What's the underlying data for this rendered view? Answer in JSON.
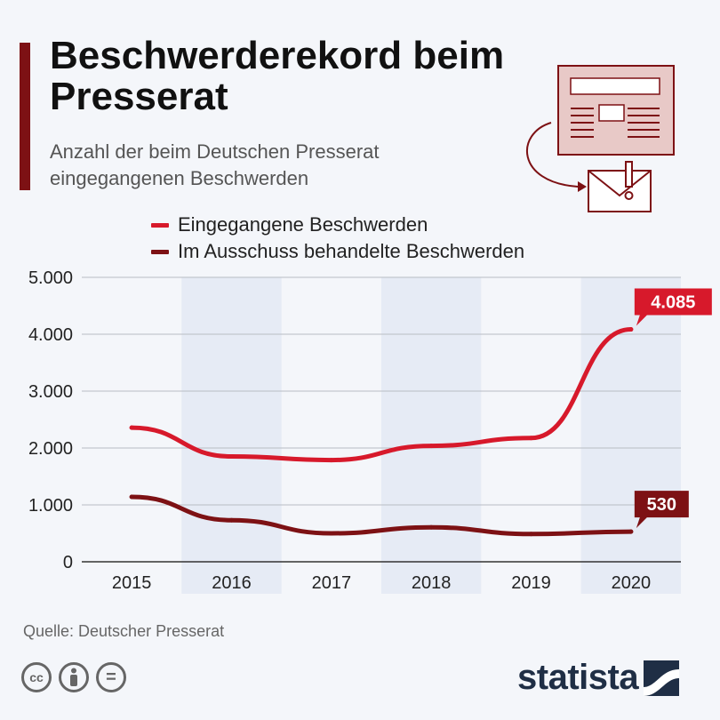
{
  "header": {
    "title": "Beschwerderekord beim Presserat",
    "subtitle": "Anzahl der beim Deutschen Presserat eingegangenen Beschwerden"
  },
  "legend": [
    {
      "label": "Eingegangene Beschwerden",
      "color": "#d7192b"
    },
    {
      "label": "Im Ausschuss behandelte Beschwerden",
      "color": "#7d1114"
    }
  ],
  "chart_data": {
    "type": "line",
    "x": [
      "2015",
      "2016",
      "2017",
      "2018",
      "2019",
      "2020"
    ],
    "ylim": [
      0,
      5000
    ],
    "yticks": [
      0,
      1000,
      2000,
      3000,
      4000,
      5000
    ],
    "ytick_labels": [
      "0",
      "1.000",
      "2.000",
      "3.000",
      "4.000",
      "5.000"
    ],
    "grid": true,
    "legend_position": "top",
    "series": [
      {
        "name": "Eingegangene Beschwerden",
        "color": "#d7192b",
        "values": [
          2358,
          1851,
          1788,
          2038,
          2175,
          4085
        ],
        "end_label": "4.085"
      },
      {
        "name": "Im Ausschuss behandelte Beschwerden",
        "color": "#7d1114",
        "values": [
          1141,
          731,
          500,
          605,
          488,
          530
        ],
        "end_label": "530"
      }
    ]
  },
  "footer": {
    "source": "Quelle: Deutscher Presserat",
    "brand": "statista",
    "license_icons": [
      "cc-icon",
      "by-icon",
      "nd-icon"
    ],
    "cc_text": "cc",
    "nd_text": "="
  },
  "colors": {
    "accent": "#7d1114",
    "background": "#f4f6fa",
    "band": "#e6ebf5",
    "brand": "#1f2e45"
  }
}
